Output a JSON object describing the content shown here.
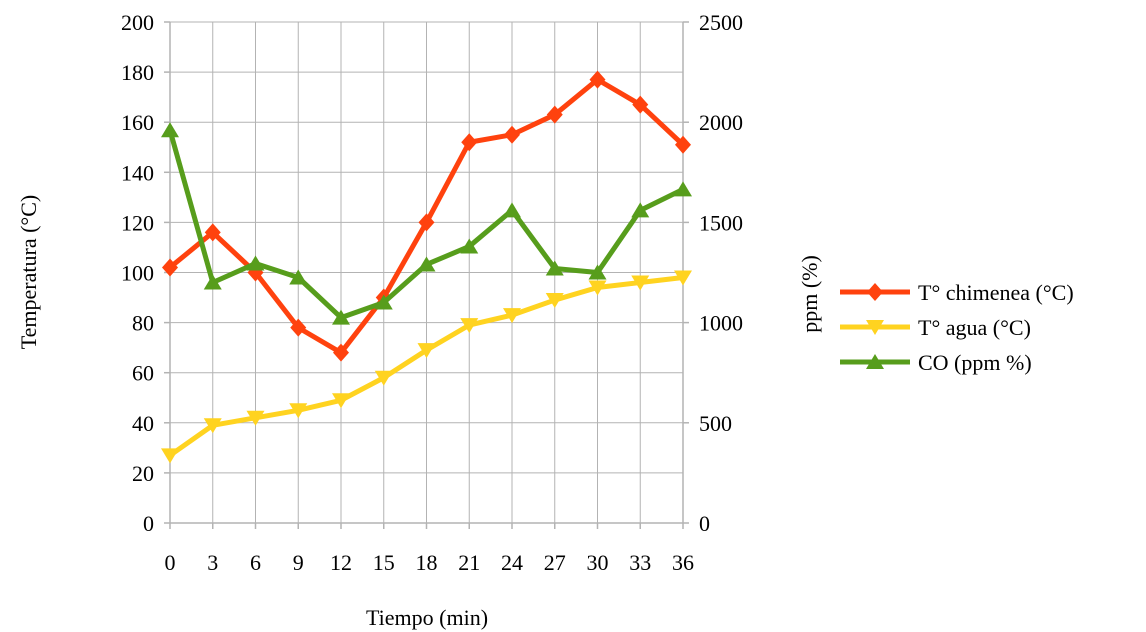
{
  "chart_data": {
    "type": "line",
    "xlabel": "Tiempo (min)",
    "ylabel": "Temperatura (°C)",
    "y2label": "ppm (%)",
    "categories": [
      "0",
      "3",
      "6",
      "9",
      "12",
      "15",
      "18",
      "21",
      "24",
      "27",
      "30",
      "33",
      "36"
    ],
    "ylim": [
      0,
      200
    ],
    "yticks": [
      0,
      20,
      40,
      60,
      80,
      100,
      120,
      140,
      160,
      180,
      200
    ],
    "y2lim": [
      0,
      2500
    ],
    "y2ticks": [
      0,
      500,
      1000,
      1500,
      2000,
      2500
    ],
    "grid": true,
    "legend_position": "right",
    "series": [
      {
        "name": "T° chimenea (°C)",
        "axis": "left",
        "marker": "diamond",
        "color": "#FF420E",
        "values": [
          102,
          116,
          100,
          78,
          68,
          90,
          120,
          152,
          155,
          163,
          177,
          167,
          151
        ]
      },
      {
        "name": "T° agua (°C)",
        "axis": "left",
        "marker": "triangle-down",
        "color": "#FFD320",
        "values": [
          27,
          39,
          42,
          45,
          49,
          58,
          69,
          79,
          83,
          89,
          94,
          96,
          98
        ]
      },
      {
        "name": "CO (ppm %)",
        "axis": "right",
        "marker": "triangle-up",
        "color": "#579D1C",
        "values": [
          1960,
          1200,
          1295,
          1225,
          1025,
          1100,
          1290,
          1380,
          1560,
          1270,
          1250,
          1560,
          1665
        ]
      }
    ]
  }
}
